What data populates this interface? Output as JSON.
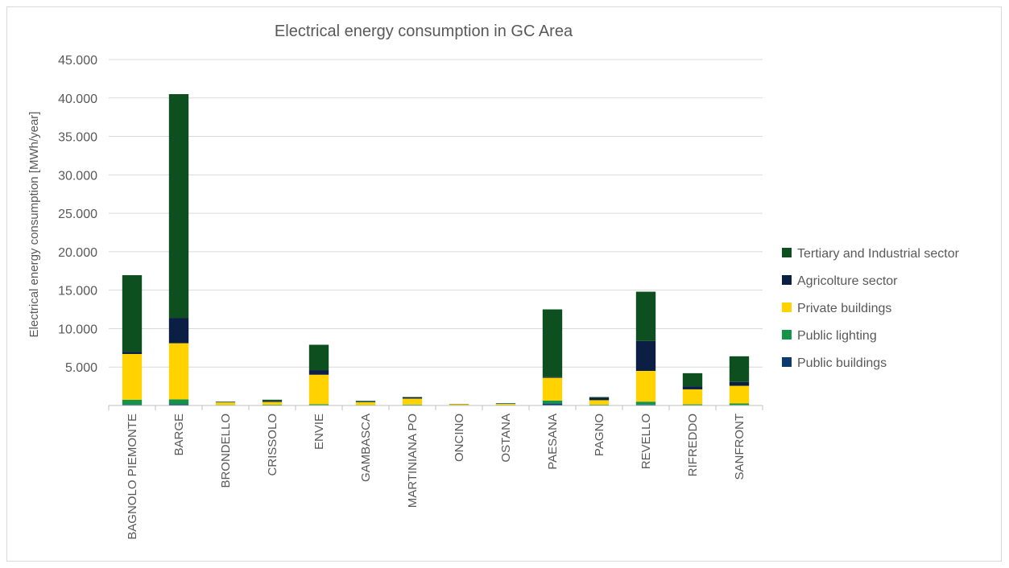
{
  "chart_data": {
    "type": "bar",
    "stacked": true,
    "title": "Electrical energy consumption in GC Area",
    "xlabel": "",
    "ylabel": "Electrical energy consumption [MWh/year]",
    "ylim": [
      0,
      45000
    ],
    "yticks": [
      {
        "value": 5000,
        "label": "5.000"
      },
      {
        "value": 10000,
        "label": "10.000"
      },
      {
        "value": 15000,
        "label": "15.000"
      },
      {
        "value": 20000,
        "label": "20.000"
      },
      {
        "value": 25000,
        "label": "25.000"
      },
      {
        "value": 30000,
        "label": "30.000"
      },
      {
        "value": 35000,
        "label": "35.000"
      },
      {
        "value": 40000,
        "label": "40.000"
      },
      {
        "value": 45000,
        "label": "45.000"
      }
    ],
    "grid": true,
    "legend_position": "right",
    "categories": [
      "BAGNOLO PIEMONTE",
      "BARGE",
      "BRONDELLO",
      "CRISSOLO",
      "ENVIE",
      "GAMBASCA",
      "MARTINIANA PO",
      "ONCINO",
      "OSTANA",
      "PAESANA",
      "PAGNO",
      "REVELLO",
      "RIFREDDO",
      "SANFRONT"
    ],
    "series": [
      {
        "name": "Public buildings",
        "color": "#0b3a6e",
        "values": [
          100,
          150,
          20,
          30,
          60,
          20,
          40,
          10,
          20,
          250,
          30,
          120,
          50,
          60
        ]
      },
      {
        "name": "Public lighting",
        "color": "#15934a",
        "values": [
          650,
          650,
          60,
          80,
          100,
          60,
          80,
          30,
          60,
          400,
          80,
          380,
          100,
          200
        ]
      },
      {
        "name": "Private buildings",
        "color": "#ffd200",
        "values": [
          5950,
          7300,
          320,
          350,
          3840,
          350,
          780,
          120,
          130,
          2950,
          580,
          4000,
          1950,
          2300
        ]
      },
      {
        "name": "Agricolture sector",
        "color": "#0b1f44",
        "values": [
          300,
          3300,
          30,
          100,
          600,
          50,
          150,
          10,
          20,
          100,
          300,
          3900,
          400,
          500
        ]
      },
      {
        "name": "Tertiary and Industrial sector",
        "color": "#0e4f20",
        "values": [
          9950,
          29100,
          70,
          190,
          3300,
          120,
          50,
          30,
          70,
          8800,
          110,
          6400,
          1700,
          3340
        ]
      }
    ]
  }
}
